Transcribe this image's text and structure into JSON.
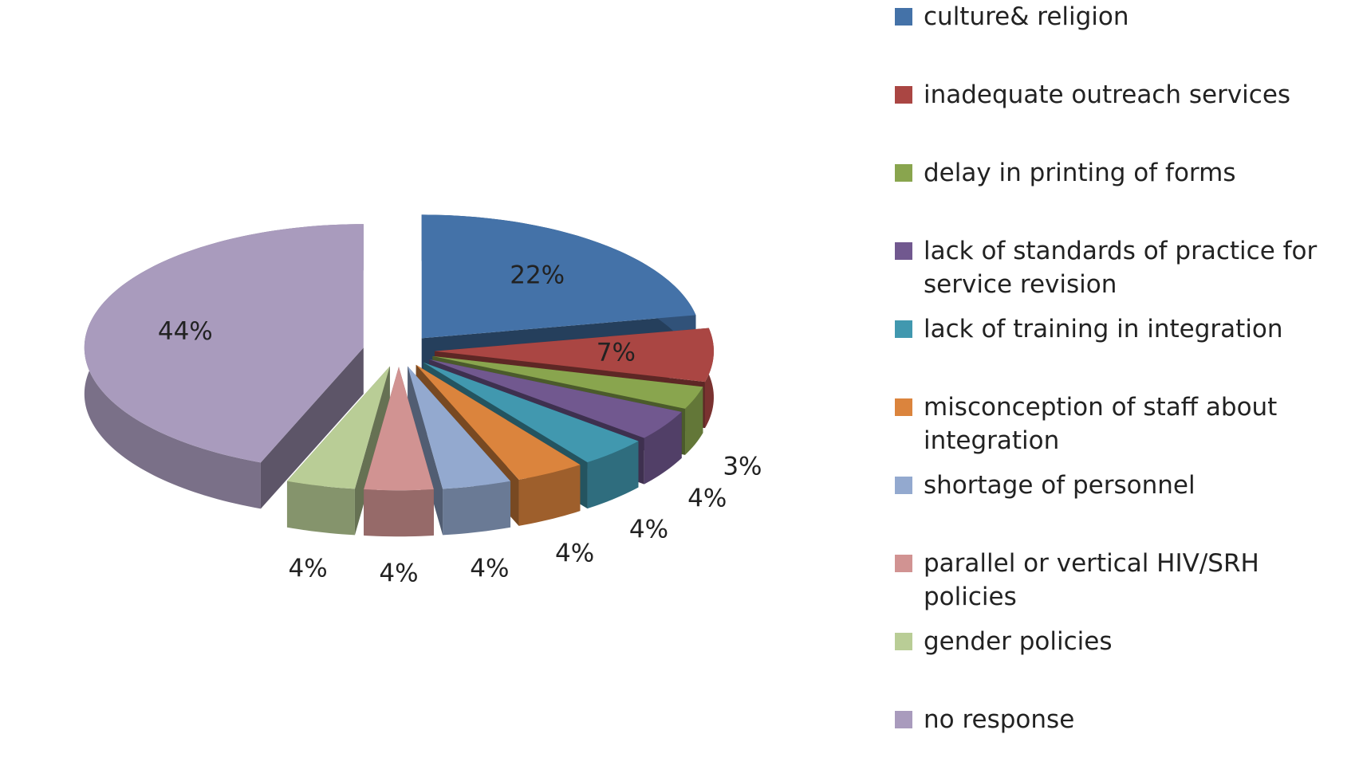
{
  "chart_data": {
    "type": "pie3d",
    "categories": [
      "culture& religion",
      "inadequate outreach services",
      "delay in printing of forms",
      "lack of standards of practice for service revision",
      "lack of training in integration",
      "misconception of staff about integration",
      "shortage of personnel",
      "parallel or vertical HIV/SRH policies",
      "gender policies",
      "no response"
    ],
    "values": [
      22,
      7,
      3,
      4,
      4,
      4,
      4,
      4,
      4,
      44
    ],
    "value_labels": [
      "22%",
      "7%",
      "3%",
      "4%",
      "4%",
      "4%",
      "4%",
      "4%",
      "4%",
      "44%"
    ],
    "colors": [
      "#4472a8",
      "#aa4643",
      "#89a54e",
      "#71588f",
      "#4198af",
      "#db843d",
      "#93a9cf",
      "#d19392",
      "#b9cd96",
      "#a99bbd"
    ],
    "legend": "right"
  }
}
